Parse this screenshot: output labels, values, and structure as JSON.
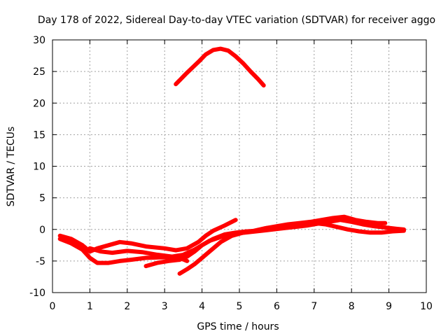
{
  "chart_data": {
    "type": "line",
    "title": "Day 178 of 2022, Sidereal Day-to-day VTEC variation (SDTVAR) for receiver aggo",
    "xlabel": "GPS time / hours",
    "ylabel": "SDTVAR / TECUs",
    "xlim": [
      0,
      10
    ],
    "ylim": [
      -10,
      30
    ],
    "xticks": [
      "0",
      "1",
      "2",
      "3",
      "4",
      "5",
      "6",
      "7",
      "8",
      "9",
      "10"
    ],
    "yticks": [
      "-10",
      "-5",
      "0",
      "5",
      "10",
      "15",
      "20",
      "25",
      "30"
    ],
    "grid": true,
    "color": "#ff0000",
    "series": [
      {
        "x": [
          3.3,
          3.6,
          3.9,
          4.1,
          4.3,
          4.5,
          4.7,
          4.9,
          5.1,
          5.3,
          5.5,
          5.65
        ],
        "y": [
          23.0,
          24.8,
          26.5,
          27.7,
          28.4,
          28.6,
          28.3,
          27.4,
          26.3,
          25.0,
          23.8,
          22.8
        ]
      },
      {
        "x": [
          0.2,
          0.5,
          0.8,
          1.0,
          1.2,
          1.5,
          1.8,
          2.1,
          2.5,
          3.0,
          3.3,
          3.6,
          3.9,
          4.1,
          4.3,
          4.6,
          4.9
        ],
        "y": [
          -1.0,
          -1.5,
          -2.5,
          -3.5,
          -3.0,
          -2.5,
          -2.0,
          -2.2,
          -2.7,
          -3.0,
          -3.3,
          -3.0,
          -2.0,
          -1.0,
          -0.2,
          0.6,
          1.5
        ]
      },
      {
        "x": [
          0.2,
          0.5,
          0.8,
          1.0,
          1.2,
          1.5,
          1.8,
          2.1,
          2.5,
          3.0,
          3.4,
          3.6
        ],
        "y": [
          -1.5,
          -2.2,
          -3.2,
          -4.5,
          -5.3,
          -5.3,
          -5.0,
          -4.8,
          -4.5,
          -4.4,
          -4.5,
          -5.0
        ]
      },
      {
        "x": [
          1.0,
          1.3,
          1.6,
          2.0,
          2.4,
          2.8,
          3.2,
          3.5,
          3.8,
          4.0,
          4.2,
          4.5,
          4.8,
          5.0,
          5.3,
          5.6,
          5.9,
          6.2,
          6.5,
          6.8,
          7.1,
          7.4,
          7.7,
          8.0,
          8.3,
          8.6,
          8.9,
          9.2,
          9.4
        ],
        "y": [
          -3.0,
          -3.5,
          -3.7,
          -3.4,
          -3.6,
          -4.0,
          -4.3,
          -4.0,
          -3.2,
          -2.5,
          -1.8,
          -1.2,
          -0.9,
          -0.6,
          -0.4,
          -0.2,
          0.0,
          0.2,
          0.4,
          0.6,
          0.9,
          1.2,
          1.5,
          1.2,
          0.8,
          0.5,
          0.3,
          0.1,
          0.0
        ]
      },
      {
        "x": [
          2.5,
          2.8,
          3.1,
          3.4,
          3.6,
          3.8,
          4.0,
          4.3,
          4.6,
          4.9,
          5.2,
          5.5,
          5.8,
          6.1,
          6.4,
          6.7,
          7.0,
          7.3,
          7.6,
          7.9,
          8.2,
          8.5,
          8.8,
          9.1,
          9.4
        ],
        "y": [
          -5.8,
          -5.3,
          -5.0,
          -4.8,
          -4.3,
          -3.5,
          -2.5,
          -1.5,
          -0.8,
          -0.5,
          -0.3,
          -0.2,
          0.1,
          0.4,
          0.6,
          0.8,
          1.0,
          0.8,
          0.4,
          0.0,
          -0.3,
          -0.5,
          -0.5,
          -0.3,
          -0.2
        ]
      },
      {
        "x": [
          3.4,
          3.6,
          3.8,
          4.0,
          4.2,
          4.5,
          4.8,
          5.1,
          5.4,
          5.7,
          6.0,
          6.3,
          6.6,
          6.9,
          7.2,
          7.5,
          7.8,
          8.1,
          8.4,
          8.7,
          8.9
        ],
        "y": [
          -7.0,
          -6.3,
          -5.5,
          -4.5,
          -3.5,
          -2.0,
          -1.0,
          -0.5,
          -0.2,
          0.2,
          0.5,
          0.8,
          1.0,
          1.2,
          1.5,
          1.8,
          2.0,
          1.5,
          1.2,
          1.0,
          1.0
        ]
      }
    ]
  }
}
